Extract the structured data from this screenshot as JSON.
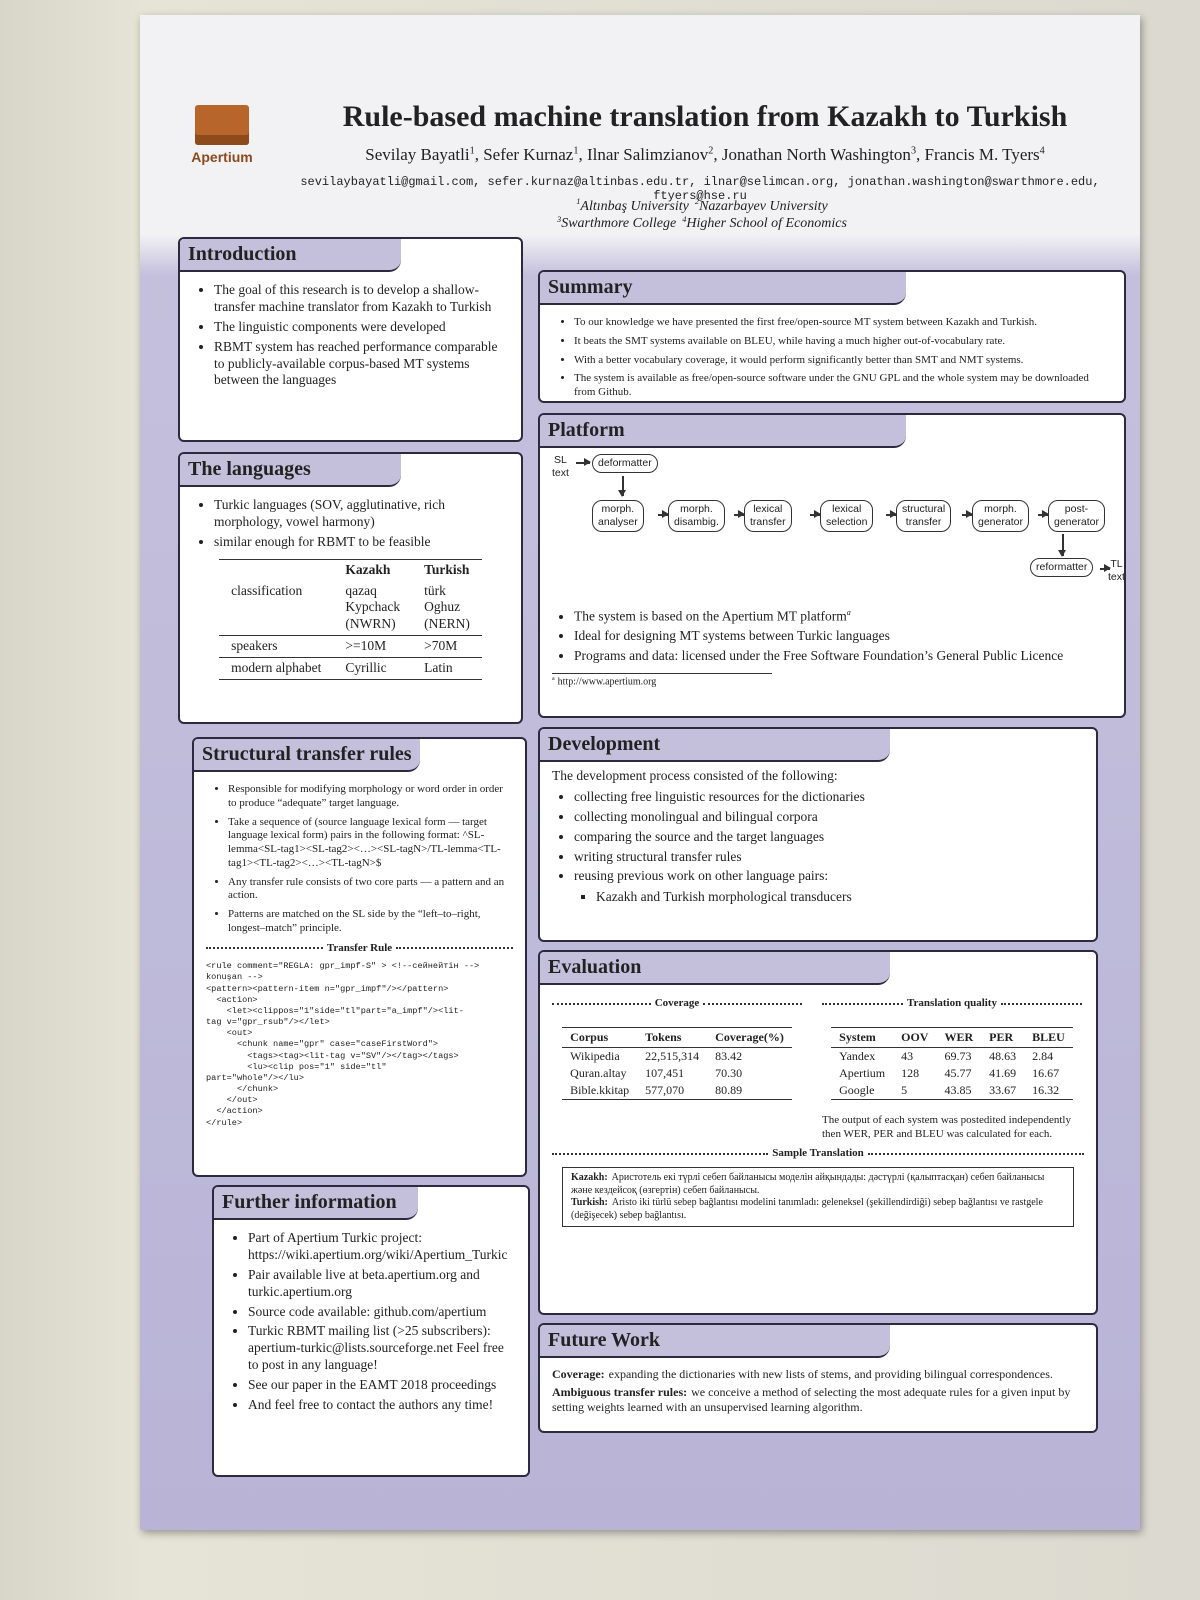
{
  "header": {
    "logo_text": "Apertium",
    "title": "Rule-based machine translation from Kazakh to Turkish",
    "authors": [
      {
        "text": "Sevilay Bayatli",
        "sup": "1"
      },
      {
        "text": ", Sefer Kurnaz",
        "sup": "1"
      },
      {
        "text": ", Ilnar Salimzianov",
        "sup": "2"
      },
      {
        "text": ", Jonathan North Washington",
        "sup": "3"
      },
      {
        "text": ", Francis M. Tyers",
        "sup": "4"
      }
    ],
    "emails": "sevilaybayatli@gmail.com, sefer.kurnaz@altinbas.edu.tr, ilnar@selimcan.org, jonathan.washington@swarthmore.edu, ftyers@hse.ru",
    "affiliations": [
      [
        {
          "sup": "1",
          "text": "Altınbaş University"
        },
        {
          "sup": "2",
          "text": "Nazarbayev University"
        }
      ],
      [
        {
          "sup": "3",
          "text": "Swarthmore College"
        },
        {
          "sup": "4",
          "text": "Higher School of Economics"
        }
      ]
    ]
  },
  "introduction": {
    "title": "Introduction",
    "items": [
      "The goal of this research is to develop a shallow-transfer machine translator from Kazakh to Turkish",
      "The linguistic components were developed",
      "RBMT system has reached performance comparable to publicly-available corpus-based MT systems between the languages"
    ]
  },
  "languages": {
    "title": "The languages",
    "items": [
      "Turkic languages (SOV, agglutinative, rich morphology, vowel harmony)",
      "similar enough for RBMT to be feasible"
    ],
    "table": {
      "header": [
        "Kazakh",
        "Turkish"
      ],
      "rows": [
        {
          "label": "classification",
          "cells": [
            "qazaq\nKypchack\n(NWRN)",
            "türk\nOghuz\n(NERN)"
          ]
        },
        {
          "label": "speakers",
          "cells": [
            ">=10M",
            ">70M"
          ]
        },
        {
          "label": "modern alphabet",
          "cells": [
            "Cyrillic",
            "Latin"
          ]
        }
      ]
    }
  },
  "structural_rules": {
    "title": "Structural transfer rules",
    "items": [
      "Responsible for modifying morphology or word order in order to produce “adequate” target language.",
      "Take a sequence of (source language lexical form — target language lexical form) pairs in the following format: ^SL-lemma<SL-tag1><SL-tag2><…><SL-tagN>/TL-lemma<TL-tag1><TL-tag2><…><TL-tagN>$",
      "Any transfer rule consists of two core parts — a pattern and an action.",
      "Patterns are matched on the SL side by the “left–to–right, longest–match” principle."
    ],
    "code_title": "Transfer Rule",
    "code": [
      "<rule comment=\"REGLA: gpr_impf-S\" > <!--сейнейтін -->",
      "konuşan -->",
      "<pattern><pattern-item n=\"gpr_impf\"/></pattern>",
      "  <action>",
      "    <let><clippos=\"1\"side=\"tl\"part=\"a_impf\"/><lit-",
      "tag v=\"gpr_rsub\"/></let>",
      "    <out>",
      "      <chunk name=\"gpr\" case=\"caseFirstWord\">",
      "        <tags><tag><lit-tag v=\"SV\"/></tag></tags>",
      "        <lu><clip pos=\"1\" side=\"tl\"",
      "part=\"whole\"/></lu>",
      "      </chunk>",
      "    </out>",
      "  </action>",
      "</rule>"
    ]
  },
  "further": {
    "title": "Further information",
    "items": [
      "Part of Apertium Turkic project: https://wiki.apertium.org/wiki/Apertium_Turkic",
      "Pair available live at beta.apertium.org and turkic.apertium.org",
      "Source code available: github.com/apertium",
      "Turkic RBMT mailing list (>25 subscribers): apertium-turkic@lists.sourceforge.net Feel free to post in any language!",
      "See our paper in the EAMT 2018 proceedings",
      "And feel free to contact the authors any time!"
    ]
  },
  "summary": {
    "title": "Summary",
    "items": [
      "To our knowledge we have presented the first free/open-source MT system between Kazakh and Turkish.",
      "It beats the SMT systems available on BLEU, while having a much higher out-of-vocabulary rate.",
      "With a better vocabulary coverage, it would perform significantly better than SMT and NMT systems.",
      "The system is available as free/open-source software under the GNU GPL and the whole system may be downloaded from Github."
    ]
  },
  "platform": {
    "title": "Platform",
    "diagram": {
      "sl_text": "SL\ntext",
      "deformatter": "deformatter",
      "nodes": [
        "morph.\nanalyser",
        "morph.\ndisambig.",
        "lexical\ntransfer",
        "lexical\nselection",
        "structural\ntransfer",
        "morph.\ngenerator",
        "post-\ngenerator"
      ],
      "reformatter": "reformatter",
      "tl_text": "TL\ntext"
    },
    "items": [
      "The system is based on the Apertium MT platform",
      "Ideal for designing MT systems between Turkic languages",
      "Programs and data: licensed under the Free Software Foundation’s General Public Licence"
    ],
    "footnote": {
      "mark": "a",
      "text": "http://www.apertium.org"
    }
  },
  "development": {
    "title": "Development",
    "intro": "The development process consisted of the following:",
    "items": [
      "collecting free linguistic resources for the dictionaries",
      "collecting monolingual and bilingual corpora",
      "comparing the source and the target languages",
      "writing structural transfer rules",
      "reusing previous work on other language pairs:"
    ],
    "subitems": [
      "Kazakh and Turkish morphological transducers"
    ]
  },
  "evaluation": {
    "title": "Evaluation",
    "coverage": {
      "title": "Coverage",
      "header": [
        "Corpus",
        "Tokens",
        "Coverage(%)"
      ],
      "rows": [
        [
          "Wikipedia",
          "22,515,314",
          "83.42"
        ],
        [
          "Quran.altay",
          "107,451",
          "70.30"
        ],
        [
          "Bible.kkitap",
          "577,070",
          "80.89"
        ]
      ]
    },
    "quality": {
      "title": "Translation quality",
      "header": [
        "System",
        "OOV",
        "WER",
        "PER",
        "BLEU"
      ],
      "rows": [
        [
          "Yandex",
          "43",
          "69.73",
          "48.63",
          "2.84"
        ],
        [
          "Apertium",
          "128",
          "45.77",
          "41.69",
          "16.67"
        ],
        [
          "Google",
          "5",
          "43.85",
          "33.67",
          "16.32"
        ]
      ]
    },
    "note": "The output of each system was postedited independently then WER, PER and BLEU was calculated for each.",
    "sample": {
      "title": "Sample Translation",
      "lines": [
        {
          "label": "Kazakh:",
          "text": "Аристотель екі түрлі себеп байланысы моделін айқындады: дәстүрлі (қалыптасқан) себеп байланысы және кездейсоқ (өзгертін) себеп байланысы."
        },
        {
          "label": "Turkish:",
          "text": "Aristo iki türlü sebep bağlantısı modelini tanımladı: geleneksel (şekillendirdiği) sebep bağlantısı ve rastgele (değişecek) sebep bağlantısı."
        }
      ]
    }
  },
  "future": {
    "title": "Future Work",
    "items": [
      {
        "label": "Coverage:",
        "text": "expanding the dictionaries with new lists of stems, and providing bilingual correspondences."
      },
      {
        "label": "Ambiguous transfer rules:",
        "text": "we conceive a method of selecting the most adequate rules for a given input by setting weights learned with an unsupervised learning algorithm."
      }
    ]
  }
}
